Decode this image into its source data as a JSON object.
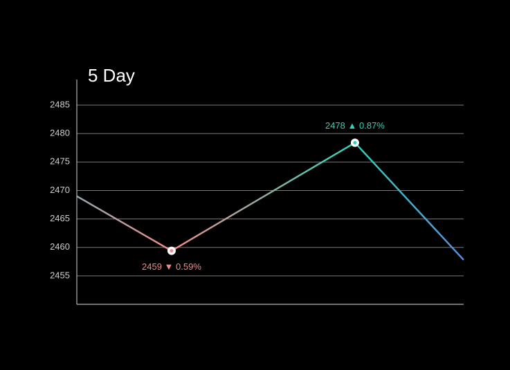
{
  "chart_data": {
    "type": "line",
    "title": "5 Day",
    "x": [
      0,
      24.5,
      71.9,
      100
    ],
    "xlim": [
      0,
      100
    ],
    "values": [
      2469,
      2459.4,
      2478.4,
      2457.8
    ],
    "value_labels": [
      null,
      "2459 ▼ 0.59%",
      "2478 ▲ 0.87%",
      null
    ],
    "point_colors": [
      "#93a9b0",
      "#f08a8a",
      "#2ed3b7",
      "#5b8de0"
    ],
    "ylim": [
      2450,
      2489.5
    ],
    "yticks": [
      2455,
      2460,
      2465,
      2470,
      2475,
      2480,
      2485
    ],
    "grid": true
  }
}
